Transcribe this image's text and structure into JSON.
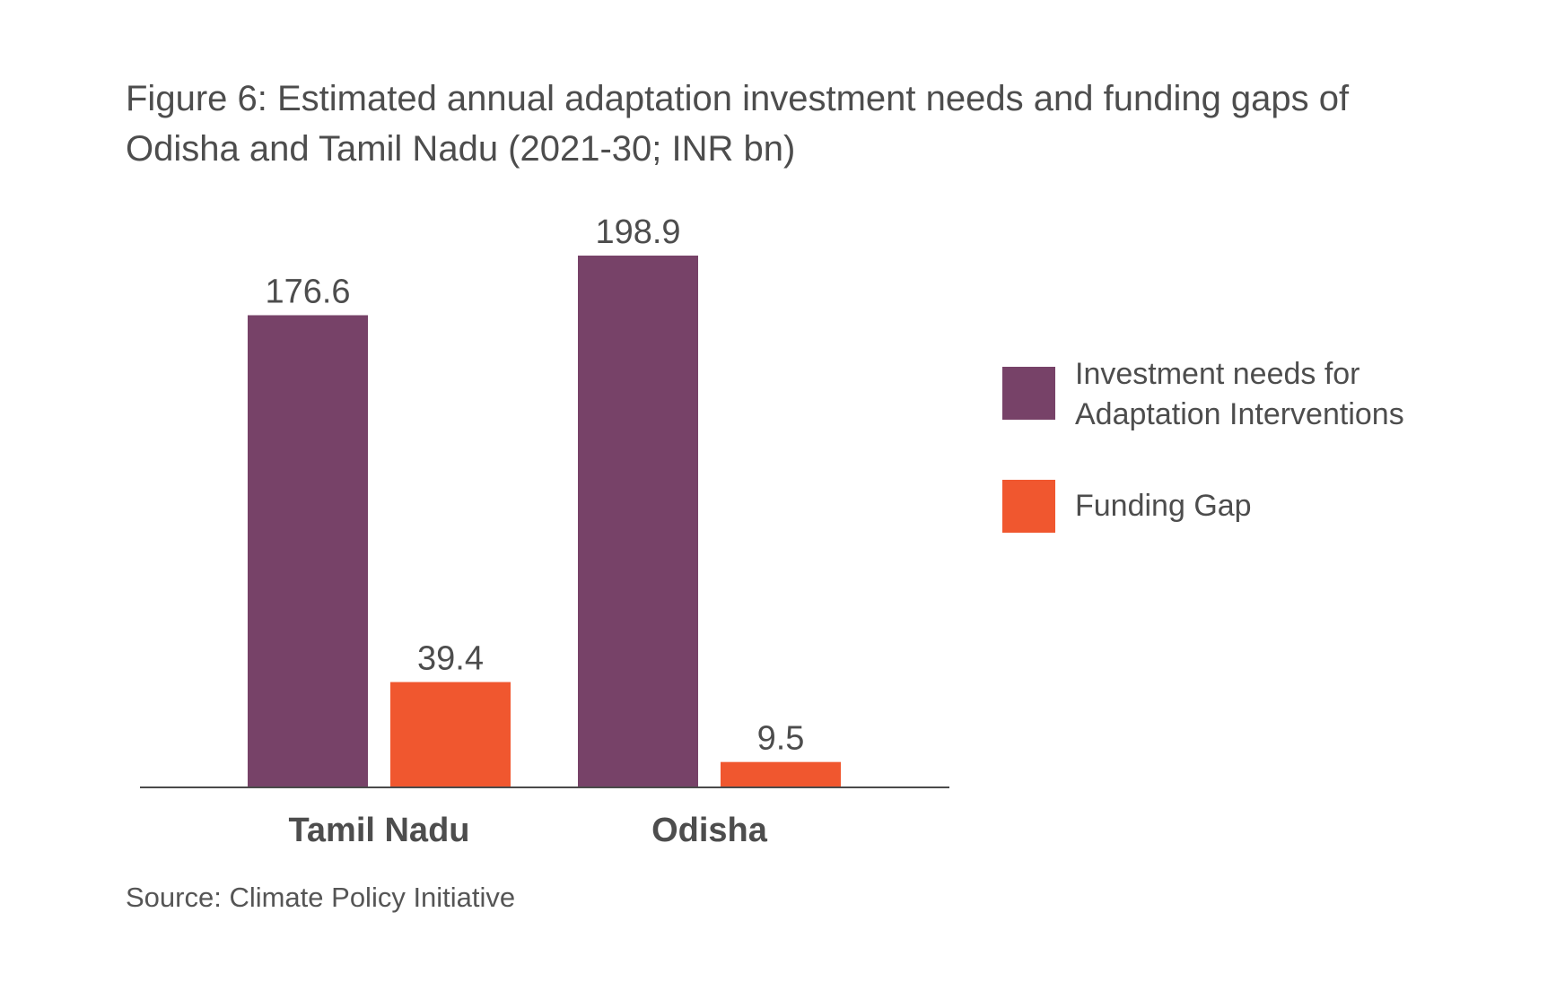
{
  "title": "Figure 6: Estimated annual adaptation investment needs and funding gaps of Odisha and Tamil Nadu (2021-30; INR bn)",
  "source": "Source: Climate Policy Initiative",
  "colors": {
    "investment": "#774268",
    "gap": "#f0572f",
    "axis": "#4a4a4a",
    "text": "#4d4d4d"
  },
  "chart_data": {
    "type": "bar",
    "categories": [
      "Tamil Nadu",
      "Odisha"
    ],
    "series": [
      {
        "name": "Investment needs for Adaptation Interventions",
        "values": [
          176.6,
          198.9
        ],
        "labels": [
          "176.6",
          "198.9"
        ]
      },
      {
        "name": "Funding Gap",
        "values": [
          39.4,
          9.5
        ],
        "labels": [
          "39.4",
          "9.5"
        ]
      }
    ],
    "ylim": [
      0,
      198.9
    ],
    "grid": false,
    "legend": "right"
  }
}
